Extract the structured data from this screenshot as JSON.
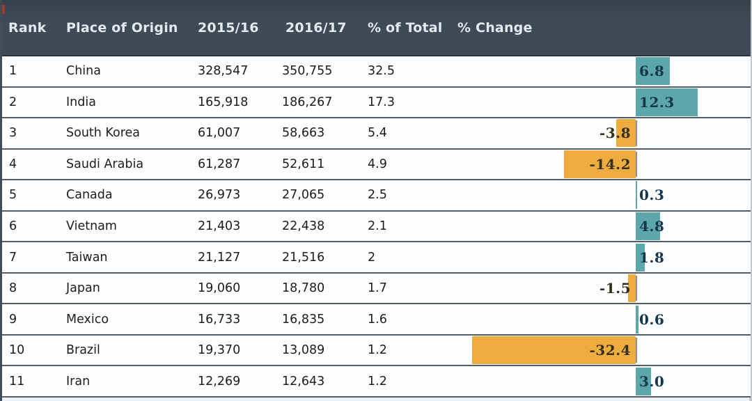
{
  "colors": {
    "positive_bar": "#5ba7ac",
    "negative_bar": "#edac3d",
    "positive_label": "#17364d",
    "negative_label": "#33301c",
    "header_bg": "#3e4a55"
  },
  "table": {
    "columns": [
      {
        "key": "rank",
        "label": "Rank"
      },
      {
        "key": "origin",
        "label": "Place of Origin"
      },
      {
        "key": "y2015_16",
        "label": "2015/16"
      },
      {
        "key": "y2016_17",
        "label": "2016/17"
      },
      {
        "key": "pct_total",
        "label": "% of Total"
      },
      {
        "key": "pct_change_label",
        "label": "% Change"
      }
    ],
    "rows": [
      {
        "rank": "1",
        "origin": "China",
        "y2015_16": "328,547",
        "y2016_17": "350,755",
        "pct_total": "32.5",
        "pct_change": 6.8,
        "pct_change_label": "6.8"
      },
      {
        "rank": "2",
        "origin": "India",
        "y2015_16": "165,918",
        "y2016_17": "186,267",
        "pct_total": "17.3",
        "pct_change": 12.3,
        "pct_change_label": "12.3"
      },
      {
        "rank": "3",
        "origin": "South Korea",
        "y2015_16": "61,007",
        "y2016_17": "58,663",
        "pct_total": "5.4",
        "pct_change": -3.8,
        "pct_change_label": "-3.8"
      },
      {
        "rank": "4",
        "origin": "Saudi Arabia",
        "y2015_16": "61,287",
        "y2016_17": "52,611",
        "pct_total": "4.9",
        "pct_change": -14.2,
        "pct_change_label": "-14.2"
      },
      {
        "rank": "5",
        "origin": "Canada",
        "y2015_16": "26,973",
        "y2016_17": "27,065",
        "pct_total": "2.5",
        "pct_change": 0.3,
        "pct_change_label": "0.3"
      },
      {
        "rank": "6",
        "origin": "Vietnam",
        "y2015_16": "21,403",
        "y2016_17": "22,438",
        "pct_total": "2.1",
        "pct_change": 4.8,
        "pct_change_label": "4.8"
      },
      {
        "rank": "7",
        "origin": "Taiwan",
        "y2015_16": "21,127",
        "y2016_17": "21,516",
        "pct_total": "2",
        "pct_change": 1.8,
        "pct_change_label": "1.8"
      },
      {
        "rank": "8",
        "origin": "Japan",
        "y2015_16": "19,060",
        "y2016_17": "18,780",
        "pct_total": "1.7",
        "pct_change": -1.5,
        "pct_change_label": "-1.5"
      },
      {
        "rank": "9",
        "origin": "Mexico",
        "y2015_16": "16,733",
        "y2016_17": "16,835",
        "pct_total": "1.6",
        "pct_change": 0.6,
        "pct_change_label": "0.6"
      },
      {
        "rank": "10",
        "origin": "Brazil",
        "y2015_16": "19,370",
        "y2016_17": "13,089",
        "pct_total": "1.2",
        "pct_change": -32.4,
        "pct_change_label": "-32.4"
      },
      {
        "rank": "11",
        "origin": "Iran",
        "y2015_16": "12,269",
        "y2016_17": "12,643",
        "pct_total": "1.2",
        "pct_change": 3.0,
        "pct_change_label": "3.0"
      }
    ]
  },
  "chart_data": {
    "type": "table",
    "title": "",
    "columns": [
      "Rank",
      "Place of Origin",
      "2015/16",
      "2016/17",
      "% of Total",
      "% Change"
    ],
    "rows": [
      [
        1,
        "China",
        328547,
        350755,
        32.5,
        6.8
      ],
      [
        2,
        "India",
        165918,
        186267,
        17.3,
        12.3
      ],
      [
        3,
        "South Korea",
        61007,
        58663,
        5.4,
        -3.8
      ],
      [
        4,
        "Saudi Arabia",
        61287,
        52611,
        4.9,
        -14.2
      ],
      [
        5,
        "Canada",
        26973,
        27065,
        2.5,
        0.3
      ],
      [
        6,
        "Vietnam",
        21403,
        22438,
        2.1,
        4.8
      ],
      [
        7,
        "Taiwan",
        21127,
        21516,
        2.0,
        1.8
      ],
      [
        8,
        "Japan",
        19060,
        18780,
        1.7,
        -1.5
      ],
      [
        9,
        "Mexico",
        16733,
        16835,
        1.6,
        0.6
      ],
      [
        10,
        "Brazil",
        19370,
        13089,
        1.2,
        -32.4
      ],
      [
        11,
        "Iran",
        12269,
        12643,
        1.2,
        3.0
      ]
    ],
    "embedded_bar_column": "% Change",
    "bar_positive_color": "#5ba7ac",
    "bar_negative_color": "#edac3d",
    "bar_baseline": 0
  }
}
